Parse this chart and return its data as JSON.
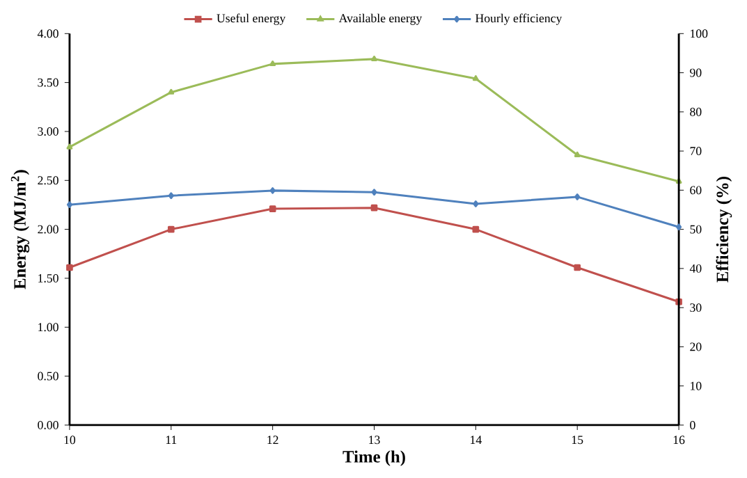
{
  "chart_data": {
    "type": "line",
    "xlabel": "Time (h)",
    "ylabel": "Energy (MJ/m$^{2}$)",
    "y2label": "Efficiency (%)",
    "x": [
      10,
      11,
      12,
      13,
      14,
      15,
      16
    ],
    "series": [
      {
        "name": "Useful energy",
        "color": "#c0504d",
        "marker": "square",
        "values": [
          1.61,
          2.0,
          2.21,
          2.22,
          2.0,
          1.61,
          1.26
        ]
      },
      {
        "name": "Available energy",
        "color": "#9bbb59",
        "marker": "triangle",
        "values": [
          2.84,
          3.4,
          3.69,
          3.74,
          3.54,
          2.76,
          2.49
        ]
      },
      {
        "name": "Hourly efficiency",
        "color": "#4f81bd",
        "marker": "diamond",
        "axis": "y2",
        "values": [
          56.3,
          58.6,
          59.9,
          59.5,
          56.5,
          58.3,
          50.6
        ]
      }
    ],
    "xlim": [
      10,
      16
    ],
    "xticks": [
      10,
      11,
      12,
      13,
      14,
      15,
      16
    ],
    "ylim": [
      0,
      4
    ],
    "yticks": [
      {
        "value": 0,
        "label": "0.00"
      },
      {
        "value": 0.5,
        "label": "0.50"
      },
      {
        "value": 1,
        "label": "1.00"
      },
      {
        "value": 1.5,
        "label": "1.50"
      },
      {
        "value": 2,
        "label": "2.00"
      },
      {
        "value": 2.5,
        "label": "2.50"
      },
      {
        "value": 3,
        "label": "3.00"
      },
      {
        "value": 3.5,
        "label": "3.50"
      },
      {
        "value": 4,
        "label": "4.00"
      }
    ],
    "y2lim": [
      0,
      100
    ],
    "y2ticks": [
      0,
      10,
      20,
      30,
      40,
      50,
      60,
      70,
      80,
      90,
      100
    ],
    "grid": false,
    "legend": "top",
    "line_style": "solid"
  }
}
